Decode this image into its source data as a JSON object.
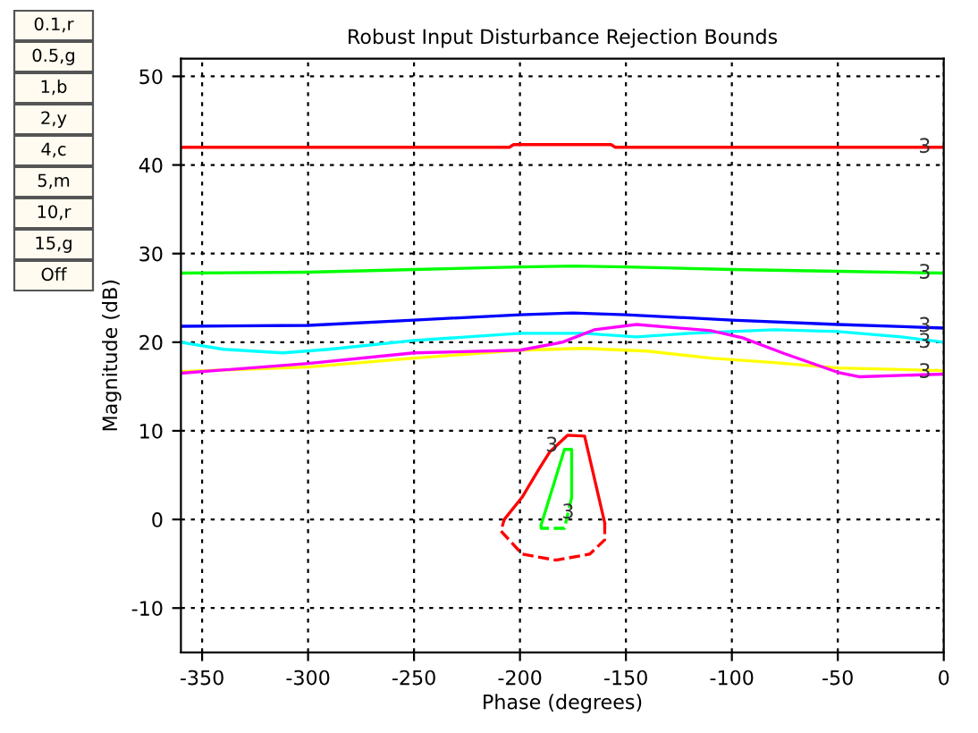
{
  "chart_data": {
    "type": "line",
    "title": "Robust Input Disturbance Rejection Bounds",
    "xlabel": "Phase (degrees)",
    "ylabel": "Magnitude (dB)",
    "xlim": [
      -360,
      0
    ],
    "ylim": [
      -15,
      52
    ],
    "xticks": [
      -350,
      -300,
      -250,
      -200,
      -150,
      -100,
      -50,
      0
    ],
    "yticks": [
      -10,
      0,
      10,
      20,
      30,
      40,
      50
    ],
    "grid": true,
    "marker": "none",
    "series": [
      {
        "color": "#ff0000",
        "x": [
          -360,
          -205,
          -203,
          -157,
          -155,
          0
        ],
        "values": [
          42,
          42,
          42.3,
          42.3,
          42,
          42
        ]
      },
      {
        "color": "#00ff00",
        "x": [
          -360,
          -300,
          -250,
          -200,
          -175,
          -150,
          -100,
          -50,
          0
        ],
        "values": [
          27.8,
          27.9,
          28.2,
          28.5,
          28.6,
          28.5,
          28.2,
          28.0,
          27.8
        ]
      },
      {
        "color": "#0000ff",
        "x": [
          -360,
          -300,
          -250,
          -200,
          -175,
          -150,
          -100,
          -50,
          0
        ],
        "values": [
          21.8,
          21.9,
          22.5,
          23.1,
          23.3,
          23.1,
          22.5,
          22.0,
          21.6
        ]
      },
      {
        "color": "#ffff00",
        "x": [
          -360,
          -300,
          -250,
          -200,
          -170,
          -140,
          -110,
          -80,
          -50,
          0
        ],
        "values": [
          16.7,
          17.2,
          18.2,
          19.1,
          19.3,
          19.0,
          18.2,
          17.7,
          17.1,
          16.8
        ]
      },
      {
        "color": "#00ffff",
        "x": [
          -360,
          -340,
          -312,
          -290,
          -250,
          -200,
          -170,
          -145,
          -120,
          -80,
          -50,
          -20,
          0
        ],
        "values": [
          20.0,
          19.2,
          18.8,
          19.2,
          20.2,
          21.0,
          21.0,
          20.6,
          21.0,
          21.4,
          21.2,
          20.6,
          20.0
        ]
      },
      {
        "color": "#ff00ff",
        "x": [
          -360,
          -300,
          -250,
          -200,
          -180,
          -165,
          -145,
          -110,
          -95,
          -75,
          -50,
          -40,
          0
        ],
        "values": [
          16.5,
          17.6,
          18.8,
          19.1,
          20.0,
          21.4,
          22.0,
          21.3,
          20.5,
          18.7,
          16.6,
          16.1,
          16.4
        ]
      },
      {
        "color": "#ff0000",
        "line_style": "solid",
        "x": [
          -207.4,
          -199,
          -191,
          -186,
          -177.6,
          -169.5,
          -160
        ],
        "values": [
          0,
          2.5,
          5.7,
          7.6,
          9.5,
          9.4,
          -0.4
        ]
      },
      {
        "color": "#ff0000",
        "line_style": "dashed",
        "x": [
          -160,
          -160,
          -167,
          -183,
          -199,
          -209,
          -207.4
        ],
        "values": [
          -0.4,
          -2.3,
          -3.9,
          -4.6,
          -3.9,
          -1.3,
          0
        ]
      },
      {
        "color": "#00ff00",
        "line_style": "solid",
        "x": [
          -175.6,
          -175.6,
          -179,
          -190,
          -190
        ],
        "values": [
          2.5,
          7.9,
          7.9,
          -0.6,
          -0.6
        ]
      },
      {
        "color": "#00ff00",
        "line_style": "dashed",
        "x": [
          -175.6,
          -179,
          -190,
          -190
        ],
        "values": [
          2.5,
          -1.0,
          -1.0,
          -0.6
        ]
      }
    ],
    "annotations": [
      "0.1,r",
      "0.5,g",
      "1,b",
      "2,y",
      "4,c",
      "5,m",
      "10,r",
      "15,g",
      "Off",
      {
        "text": "3",
        "x": -9,
        "y": 42
      },
      {
        "text": "3",
        "x": -9,
        "y": 27.8
      },
      {
        "text": "3",
        "x": -9,
        "y": 21.8
      },
      {
        "text": "3",
        "x": -9,
        "y": 20
      },
      {
        "text": "3",
        "x": -9,
        "y": 16.6
      },
      {
        "text": "3",
        "x": -185,
        "y": 8.3
      },
      {
        "text": "3",
        "x": -177.3,
        "y": 0.75
      }
    ]
  }
}
